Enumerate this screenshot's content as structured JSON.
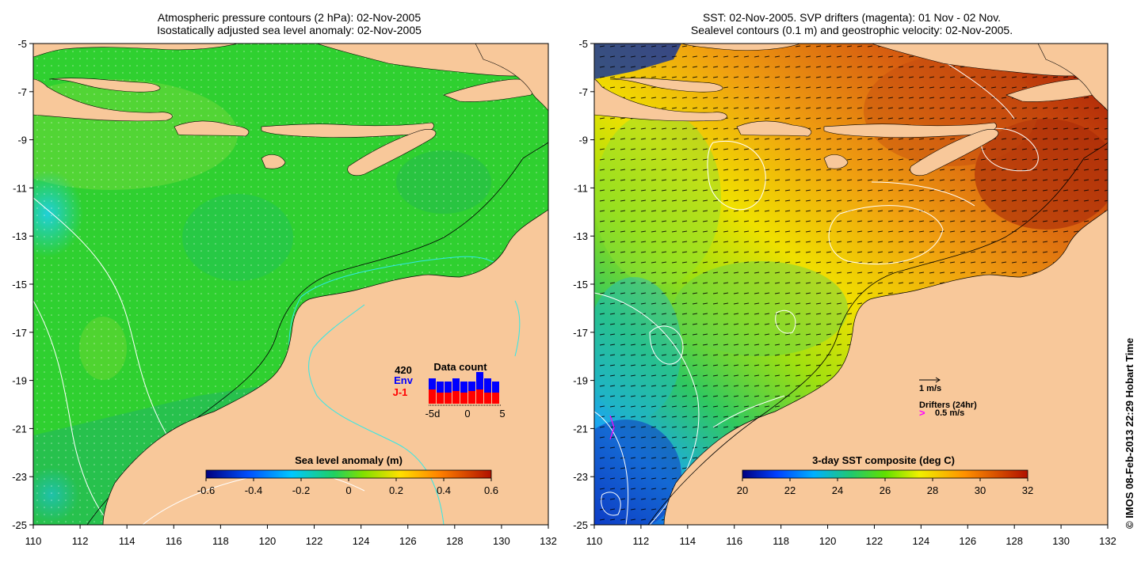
{
  "left_panel": {
    "title_line1": "Atmospheric pressure contours (2 hPa): 02-Nov-2005",
    "title_line2": "Isostatically adjusted sea level anomaly: 02-Nov-2005",
    "colorbar": {
      "title": "Sea level anomaly (m)",
      "ticks": [
        "-0.6",
        "-0.4",
        "-0.2",
        "0",
        "0.2",
        "0.4",
        "0.6"
      ]
    },
    "data_count": {
      "title": "Data count",
      "max_label": "420",
      "series1_label": "Env",
      "series2_label": "J-1",
      "x_labels": [
        "-5d",
        "0",
        "5"
      ],
      "env_values": [
        0.8,
        0.7,
        0.7,
        0.8,
        0.7,
        0.7,
        1.0,
        0.8,
        0.7
      ],
      "j1_values": [
        0.45,
        0.35,
        0.35,
        0.4,
        0.35,
        0.4,
        0.45,
        0.35,
        0.35
      ],
      "colors": {
        "env": "#0000ff",
        "j1": "#ff0000"
      }
    }
  },
  "right_panel": {
    "title_line1": "SST: 02-Nov-2005. SVP drifters (magenta): 01 Nov - 02 Nov.",
    "title_line2": "Sealevel contours (0.1 m) and geostrophic velocity: 02-Nov-2005.",
    "colorbar": {
      "title": "3-day SST composite (deg C)",
      "ticks": [
        "20",
        "22",
        "24",
        "26",
        "28",
        "30",
        "32"
      ]
    },
    "velocity_key": "1 m/s",
    "drifters_label": "Drifters (24hr)",
    "drifters_key": "0.5 m/s",
    "drifter_symbol": ">"
  },
  "axes": {
    "y_ticks": [
      "-5",
      "-7",
      "-9",
      "-11",
      "-13",
      "-15",
      "-17",
      "-19",
      "-21",
      "-23",
      "-25"
    ],
    "x_ticks": [
      "110",
      "112",
      "114",
      "116",
      "118",
      "120",
      "122",
      "124",
      "126",
      "128",
      "130",
      "132"
    ]
  },
  "colors": {
    "land": "#f8c89a",
    "ocean_left": "#2fd030",
    "sst_warm": "#d05810",
    "sst_cool": "#1878e8",
    "magenta": "#ff00ff"
  },
  "credit": "© IMOS 08-Feb-2013 22:29 Hobart Time"
}
